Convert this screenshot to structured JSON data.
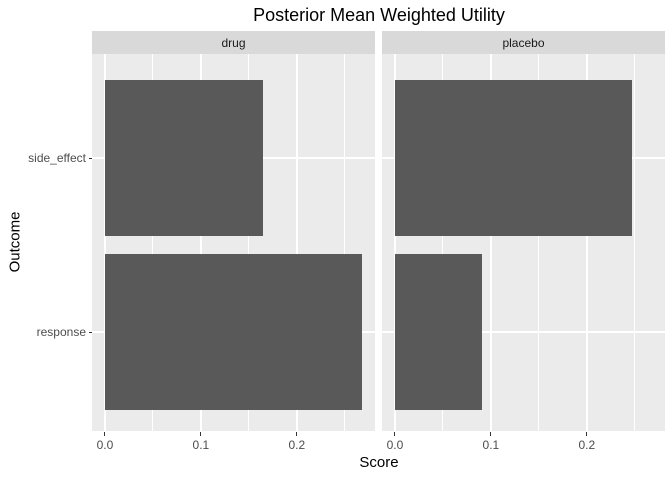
{
  "title": "Posterior Mean Weighted Utility",
  "chart_data": {
    "type": "bar",
    "orientation": "horizontal",
    "title": "Posterior Mean Weighted Utility",
    "xlabel": "Score",
    "ylabel": "Outcome",
    "categories": [
      "side_effect",
      "response"
    ],
    "facets": [
      {
        "label": "drug",
        "values": [
          0.165,
          0.268
        ]
      },
      {
        "label": "placebo",
        "values": [
          0.247,
          0.091
        ]
      }
    ],
    "x_ticks": [
      0,
      0.1,
      0.2
    ],
    "x_tick_labels": [
      "0.0",
      "0.1",
      "0.2"
    ],
    "x_minor_ticks": [
      0.05,
      0.15,
      0.25
    ],
    "xlim": [
      -0.0135,
      0.2815
    ],
    "grid": "major-and-minor",
    "legend_position": "none",
    "colors": {
      "bar": "#595959",
      "panel_bg": "#EBEBEB",
      "strip_bg": "#D9D9D9",
      "grid": "#FFFFFF",
      "tick_text": "#4D4D4D",
      "tick_mark": "#333333",
      "strip_text": "#1A1A1A",
      "title_text": "#000000"
    }
  }
}
